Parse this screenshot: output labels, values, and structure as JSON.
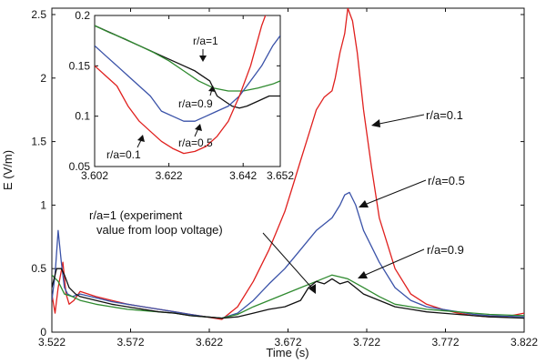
{
  "colors": {
    "r01": "#e0201e",
    "r05": "#3a52a8",
    "r09": "#2f8a2f",
    "r1": "#111111"
  },
  "chart_data": [
    {
      "type": "line",
      "xlabel": "Time (s)",
      "ylabel": "E (V/m)",
      "xlim": [
        3.522,
        3.822
      ],
      "ylim": [
        0,
        2.55
      ],
      "xticks": [
        "3.522",
        "3.572",
        "3.622",
        "3.672",
        "3.722",
        "3.772",
        "3.822"
      ],
      "yticks": [
        "0",
        "0.5",
        "1",
        "1.5",
        "2",
        "2.5"
      ],
      "annotations": {
        "r01": "r/a=0.1",
        "r05": "r/a=0.5",
        "r09": "r/a=0.9",
        "r1_line1": "r/a=1 (experiment",
        "r1_line2": "value from loop voltage)"
      },
      "series": [
        {
          "key": "r01",
          "color": "#e0201e",
          "x": [
            3.522,
            3.524,
            3.526,
            3.529,
            3.531,
            3.533,
            3.536,
            3.54,
            3.55,
            3.56,
            3.57,
            3.58,
            3.59,
            3.6,
            3.61,
            3.62,
            3.63,
            3.64,
            3.65,
            3.66,
            3.67,
            3.675,
            3.68,
            3.685,
            3.69,
            3.695,
            3.7,
            3.702,
            3.705,
            3.708,
            3.71,
            3.713,
            3.716,
            3.72,
            3.725,
            3.73,
            3.74,
            3.75,
            3.76,
            3.77,
            3.78,
            3.79,
            3.8,
            3.81,
            3.822
          ],
          "y": [
            0.3,
            0.15,
            0.35,
            0.55,
            0.3,
            0.22,
            0.25,
            0.32,
            0.28,
            0.25,
            0.22,
            0.2,
            0.18,
            0.16,
            0.14,
            0.12,
            0.1,
            0.2,
            0.4,
            0.65,
            0.95,
            1.15,
            1.35,
            1.55,
            1.75,
            1.85,
            1.9,
            2.0,
            2.2,
            2.35,
            2.55,
            2.45,
            2.2,
            1.75,
            1.3,
            0.9,
            0.5,
            0.3,
            0.22,
            0.18,
            0.15,
            0.13,
            0.12,
            0.12,
            0.15
          ]
        },
        {
          "key": "r05",
          "color": "#3a52a8",
          "x": [
            3.522,
            3.524,
            3.526,
            3.528,
            3.53,
            3.532,
            3.535,
            3.54,
            3.55,
            3.56,
            3.57,
            3.58,
            3.59,
            3.6,
            3.61,
            3.62,
            3.63,
            3.64,
            3.65,
            3.66,
            3.67,
            3.68,
            3.69,
            3.7,
            3.705,
            3.708,
            3.711,
            3.715,
            3.72,
            3.73,
            3.74,
            3.75,
            3.76,
            3.77,
            3.78,
            3.79,
            3.8,
            3.822
          ],
          "y": [
            0.25,
            0.45,
            0.8,
            0.55,
            0.35,
            0.3,
            0.28,
            0.3,
            0.27,
            0.24,
            0.22,
            0.2,
            0.18,
            0.16,
            0.14,
            0.12,
            0.11,
            0.15,
            0.25,
            0.38,
            0.5,
            0.65,
            0.8,
            0.9,
            1.0,
            1.08,
            1.1,
            1.0,
            0.8,
            0.55,
            0.35,
            0.25,
            0.2,
            0.18,
            0.16,
            0.14,
            0.13,
            0.12
          ]
        },
        {
          "key": "r09",
          "color": "#2f8a2f",
          "x": [
            3.522,
            3.526,
            3.53,
            3.535,
            3.54,
            3.55,
            3.56,
            3.57,
            3.58,
            3.59,
            3.6,
            3.61,
            3.62,
            3.63,
            3.64,
            3.65,
            3.66,
            3.67,
            3.68,
            3.69,
            3.7,
            3.71,
            3.72,
            3.73,
            3.74,
            3.75,
            3.76,
            3.77,
            3.78,
            3.79,
            3.8,
            3.822
          ],
          "y": [
            0.45,
            0.4,
            0.3,
            0.28,
            0.25,
            0.22,
            0.2,
            0.18,
            0.17,
            0.16,
            0.15,
            0.13,
            0.12,
            0.11,
            0.14,
            0.2,
            0.25,
            0.3,
            0.35,
            0.4,
            0.45,
            0.42,
            0.35,
            0.28,
            0.22,
            0.2,
            0.18,
            0.17,
            0.16,
            0.15,
            0.14,
            0.13
          ]
        },
        {
          "key": "r1",
          "color": "#111111",
          "x": [
            3.522,
            3.525,
            3.528,
            3.53,
            3.533,
            3.537,
            3.54,
            3.55,
            3.56,
            3.57,
            3.58,
            3.59,
            3.6,
            3.61,
            3.62,
            3.63,
            3.64,
            3.65,
            3.66,
            3.67,
            3.68,
            3.685,
            3.69,
            3.695,
            3.7,
            3.705,
            3.71,
            3.715,
            3.72,
            3.73,
            3.74,
            3.75,
            3.76,
            3.77,
            3.78,
            3.79,
            3.8,
            3.822
          ],
          "y": [
            0.35,
            0.5,
            0.5,
            0.45,
            0.35,
            0.3,
            0.28,
            0.25,
            0.22,
            0.2,
            0.18,
            0.16,
            0.15,
            0.13,
            0.12,
            0.11,
            0.12,
            0.15,
            0.18,
            0.2,
            0.25,
            0.35,
            0.4,
            0.38,
            0.42,
            0.38,
            0.4,
            0.35,
            0.3,
            0.25,
            0.2,
            0.18,
            0.16,
            0.15,
            0.14,
            0.13,
            0.12,
            0.11
          ]
        }
      ]
    },
    {
      "type": "line",
      "xlim": [
        3.602,
        3.652
      ],
      "ylim": [
        0.05,
        0.2
      ],
      "xticks": [
        "3.602",
        "3.622",
        "3.642",
        "3.652"
      ],
      "yticks": [
        "0.05",
        "0.1",
        "0.15",
        "0.2"
      ],
      "annotations": {
        "r1": "r/a=1",
        "r09": "r/a=0.9",
        "r05": "r/a=0.5",
        "r01": "r/a=0.1"
      },
      "series": [
        {
          "key": "r1",
          "color": "#111111",
          "x": [
            3.602,
            3.605,
            3.608,
            3.611,
            3.614,
            3.617,
            3.62,
            3.623,
            3.626,
            3.629,
            3.631,
            3.633,
            3.635,
            3.637,
            3.639,
            3.641,
            3.643,
            3.646,
            3.649,
            3.652
          ],
          "y": [
            0.19,
            0.185,
            0.18,
            0.175,
            0.17,
            0.165,
            0.16,
            0.155,
            0.15,
            0.145,
            0.14,
            0.135,
            0.12,
            0.115,
            0.11,
            0.108,
            0.11,
            0.115,
            0.12,
            0.12
          ]
        },
        {
          "key": "r09",
          "color": "#2f8a2f",
          "x": [
            3.602,
            3.606,
            3.61,
            3.614,
            3.618,
            3.622,
            3.626,
            3.63,
            3.634,
            3.638,
            3.642,
            3.646,
            3.65,
            3.652
          ],
          "y": [
            0.19,
            0.183,
            0.177,
            0.17,
            0.163,
            0.155,
            0.145,
            0.135,
            0.128,
            0.125,
            0.125,
            0.128,
            0.132,
            0.135
          ]
        },
        {
          "key": "r05",
          "color": "#3a52a8",
          "x": [
            3.602,
            3.605,
            3.608,
            3.611,
            3.614,
            3.617,
            3.62,
            3.623,
            3.626,
            3.629,
            3.632,
            3.635,
            3.638,
            3.641,
            3.644,
            3.647,
            3.65,
            3.652
          ],
          "y": [
            0.17,
            0.16,
            0.15,
            0.14,
            0.13,
            0.12,
            0.105,
            0.1,
            0.095,
            0.095,
            0.1,
            0.105,
            0.11,
            0.12,
            0.135,
            0.15,
            0.17,
            0.18
          ]
        },
        {
          "key": "r01",
          "color": "#e0201e",
          "x": [
            3.602,
            3.605,
            3.608,
            3.611,
            3.614,
            3.617,
            3.62,
            3.623,
            3.626,
            3.629,
            3.632,
            3.635,
            3.638,
            3.641,
            3.644,
            3.647,
            3.649
          ],
          "y": [
            0.15,
            0.14,
            0.13,
            0.11,
            0.095,
            0.085,
            0.075,
            0.068,
            0.063,
            0.065,
            0.07,
            0.08,
            0.095,
            0.12,
            0.15,
            0.19,
            0.21
          ]
        }
      ]
    }
  ]
}
